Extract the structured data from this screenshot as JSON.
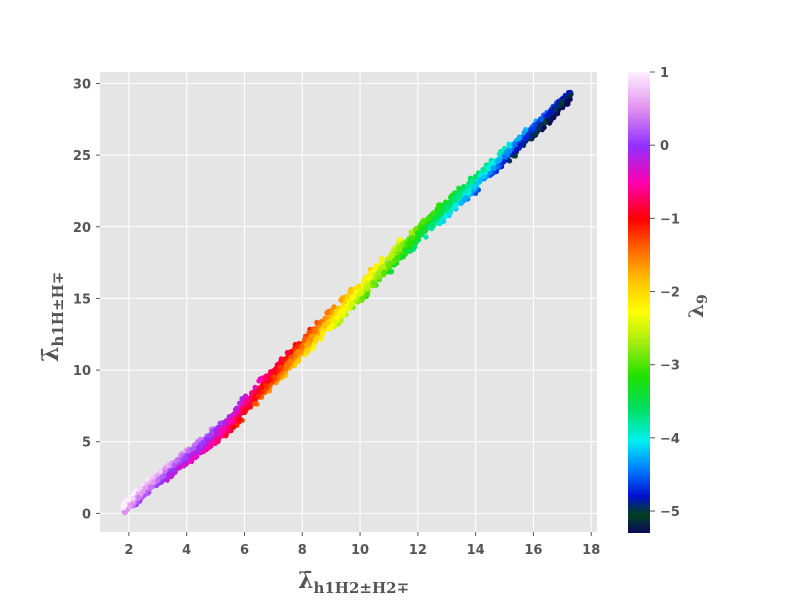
{
  "chart_data": {
    "type": "scatter",
    "xlabel": "λ̄",
    "xlabel_sub": "h1H2±H2∓",
    "ylabel": "λ̄",
    "ylabel_sub": "h1H±H∓",
    "xlim": [
      1.0,
      18.2
    ],
    "ylim": [
      -1.3,
      30.8
    ],
    "x_ticks": [
      2,
      4,
      6,
      8,
      10,
      12,
      14,
      16,
      18
    ],
    "y_ticks": [
      0,
      5,
      10,
      15,
      20,
      25,
      30
    ],
    "grid": true,
    "colorbar": {
      "label": "λ",
      "label_sub": "9",
      "range": [
        -5.3,
        1.0
      ],
      "ticks": [
        1,
        0,
        -1,
        -2,
        -3,
        -4,
        -5
      ],
      "tick_labels": [
        "1",
        "0",
        "−1",
        "−2",
        "−3",
        "−4",
        "−5"
      ],
      "colormap": "gist_ncar-like: dark navy → blue → cyan → green → yellow → orange → red → magenta → violet → white"
    },
    "series": [
      {
        "description": "dense scatter band; each point colored by λ9",
        "points": [
          {
            "x": 1.8,
            "y": 0.3,
            "c": 0.9
          },
          {
            "x": 2.3,
            "y": 1.2,
            "c": 0.6
          },
          {
            "x": 3.0,
            "y": 2.4,
            "c": 0.4
          },
          {
            "x": 3.7,
            "y": 3.5,
            "c": 0.1
          },
          {
            "x": 4.5,
            "y": 4.6,
            "c": -0.1
          },
          {
            "x": 5.5,
            "y": 6.3,
            "c": -0.5
          },
          {
            "x": 6.5,
            "y": 8.5,
            "c": -1.0
          },
          {
            "x": 7.5,
            "y": 10.5,
            "c": -1.4
          },
          {
            "x": 8.5,
            "y": 12.5,
            "c": -1.8
          },
          {
            "x": 9.5,
            "y": 14.5,
            "c": -2.2
          },
          {
            "x": 10.5,
            "y": 16.5,
            "c": -2.6
          },
          {
            "x": 11.5,
            "y": 18.5,
            "c": -3.0
          },
          {
            "x": 12.5,
            "y": 20.5,
            "c": -3.4
          },
          {
            "x": 13.5,
            "y": 22.2,
            "c": -3.8
          },
          {
            "x": 14.5,
            "y": 24.0,
            "c": -4.2
          },
          {
            "x": 15.5,
            "y": 25.8,
            "c": -4.6
          },
          {
            "x": 16.5,
            "y": 27.6,
            "c": -5.0
          },
          {
            "x": 17.3,
            "y": 29.2,
            "c": -5.2
          }
        ]
      }
    ]
  }
}
